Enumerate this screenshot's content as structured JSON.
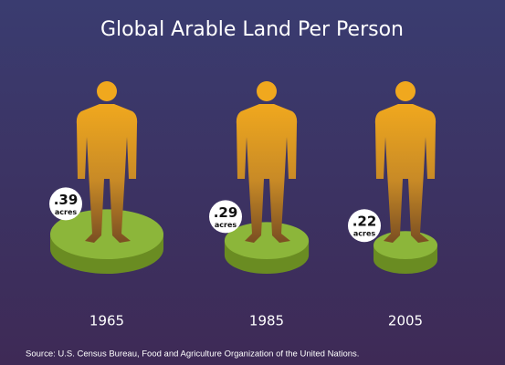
{
  "chart_data": {
    "type": "pictogram",
    "title": "Global Arable Land Per Person",
    "categories": [
      "1965",
      "1985",
      "2005"
    ],
    "values": [
      0.39,
      0.29,
      0.22
    ],
    "value_labels": [
      ".39",
      ".29",
      ".22"
    ],
    "unit": "acres",
    "color": "#8cb63a",
    "source": "Source: U.S. Census Bureau, Food and Agriculture Organization of the United Nations."
  }
}
